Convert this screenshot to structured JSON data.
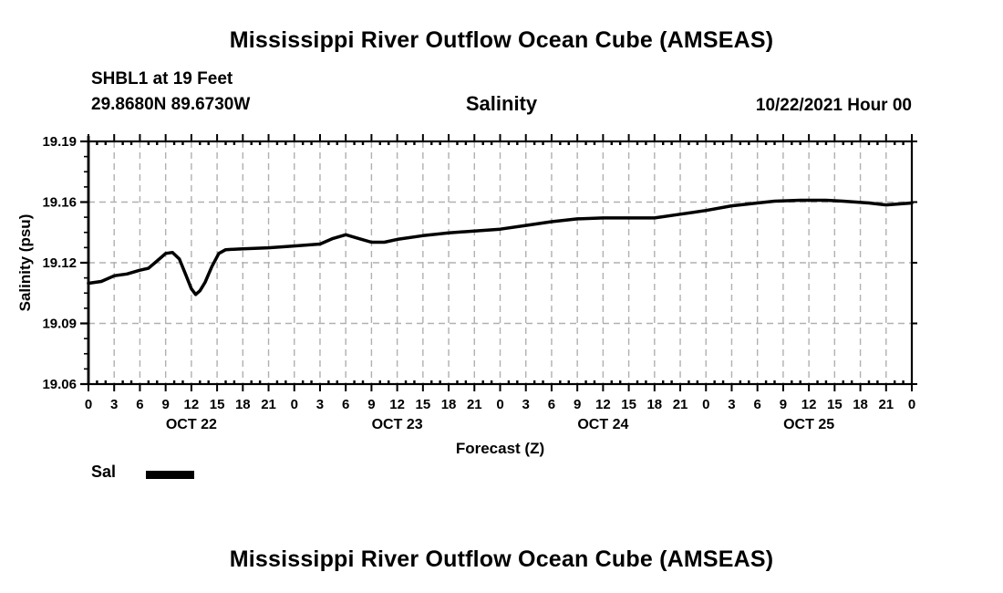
{
  "header": {
    "title_top": "Mississippi River Outflow Ocean Cube (AMSEAS)",
    "station_line1": "SHBL1 at 19 Feet",
    "station_line2": "29.8680N  89.6730W",
    "plot_label": "Salinity",
    "run_label": "10/22/2021 Hour 00"
  },
  "footer": {
    "title_bottom": "Mississippi River Outflow Ocean Cube (AMSEAS)"
  },
  "legend": {
    "label": "Sal",
    "swatch_color": "#000000"
  },
  "chart_data": {
    "type": "line",
    "title": "Salinity",
    "xlabel": "Forecast (Z)",
    "ylabel": "Salinity (psu)",
    "x_unit": "hours",
    "xlim_hours": [
      0,
      96
    ],
    "ylim": [
      19.06,
      19.19
    ],
    "y_tick_labels": [
      "19.19",
      "19.16",
      "19.12",
      "19.09",
      "19.06"
    ],
    "x_major_step_hours": 3,
    "x_minor_step_hours": 1,
    "x_tick_labels": [
      "0",
      "3",
      "6",
      "9",
      "12",
      "15",
      "18",
      "21",
      "0",
      "3",
      "6",
      "9",
      "12",
      "15",
      "18",
      "21",
      "0",
      "3",
      "6",
      "9",
      "12",
      "15",
      "18",
      "21",
      "0",
      "3",
      "6",
      "9",
      "12",
      "15",
      "18",
      "21",
      "0"
    ],
    "day_labels": [
      {
        "text": "OCT 22",
        "hour": 12
      },
      {
        "text": "OCT 23",
        "hour": 36
      },
      {
        "text": "OCT 24",
        "hour": 60
      },
      {
        "text": "OCT 25",
        "hour": 84
      }
    ],
    "grid": true,
    "grid_color": "#b0b0b0",
    "line_color": "#000000",
    "series": [
      {
        "name": "Sal",
        "points": [
          [
            0,
            19.114
          ],
          [
            1.5,
            19.115
          ],
          [
            3,
            19.118
          ],
          [
            4.5,
            19.119
          ],
          [
            6,
            19.121
          ],
          [
            7,
            19.122
          ],
          [
            8,
            19.126
          ],
          [
            9,
            19.13
          ],
          [
            9.8,
            19.1305
          ],
          [
            10.6,
            19.127
          ],
          [
            11.4,
            19.118
          ],
          [
            12,
            19.111
          ],
          [
            12.5,
            19.108
          ],
          [
            13,
            19.11
          ],
          [
            13.6,
            19.1145
          ],
          [
            14.4,
            19.123
          ],
          [
            15.2,
            19.13
          ],
          [
            16,
            19.132
          ],
          [
            18,
            19.1325
          ],
          [
            21,
            19.133
          ],
          [
            24,
            19.134
          ],
          [
            27,
            19.135
          ],
          [
            28.5,
            19.138
          ],
          [
            30,
            19.14
          ],
          [
            31.5,
            19.138
          ],
          [
            33,
            19.136
          ],
          [
            34.5,
            19.136
          ],
          [
            36,
            19.1375
          ],
          [
            39,
            19.1395
          ],
          [
            42,
            19.141
          ],
          [
            45,
            19.142
          ],
          [
            48,
            19.143
          ],
          [
            51,
            19.145
          ],
          [
            54,
            19.147
          ],
          [
            57,
            19.1485
          ],
          [
            60,
            19.149
          ],
          [
            63,
            19.149
          ],
          [
            66,
            19.149
          ],
          [
            69,
            19.151
          ],
          [
            72,
            19.153
          ],
          [
            75,
            19.1555
          ],
          [
            78,
            19.157
          ],
          [
            80,
            19.158
          ],
          [
            83,
            19.1585
          ],
          [
            86,
            19.1585
          ],
          [
            88,
            19.158
          ],
          [
            91,
            19.157
          ],
          [
            93,
            19.156
          ],
          [
            96,
            19.157
          ]
        ]
      }
    ]
  }
}
